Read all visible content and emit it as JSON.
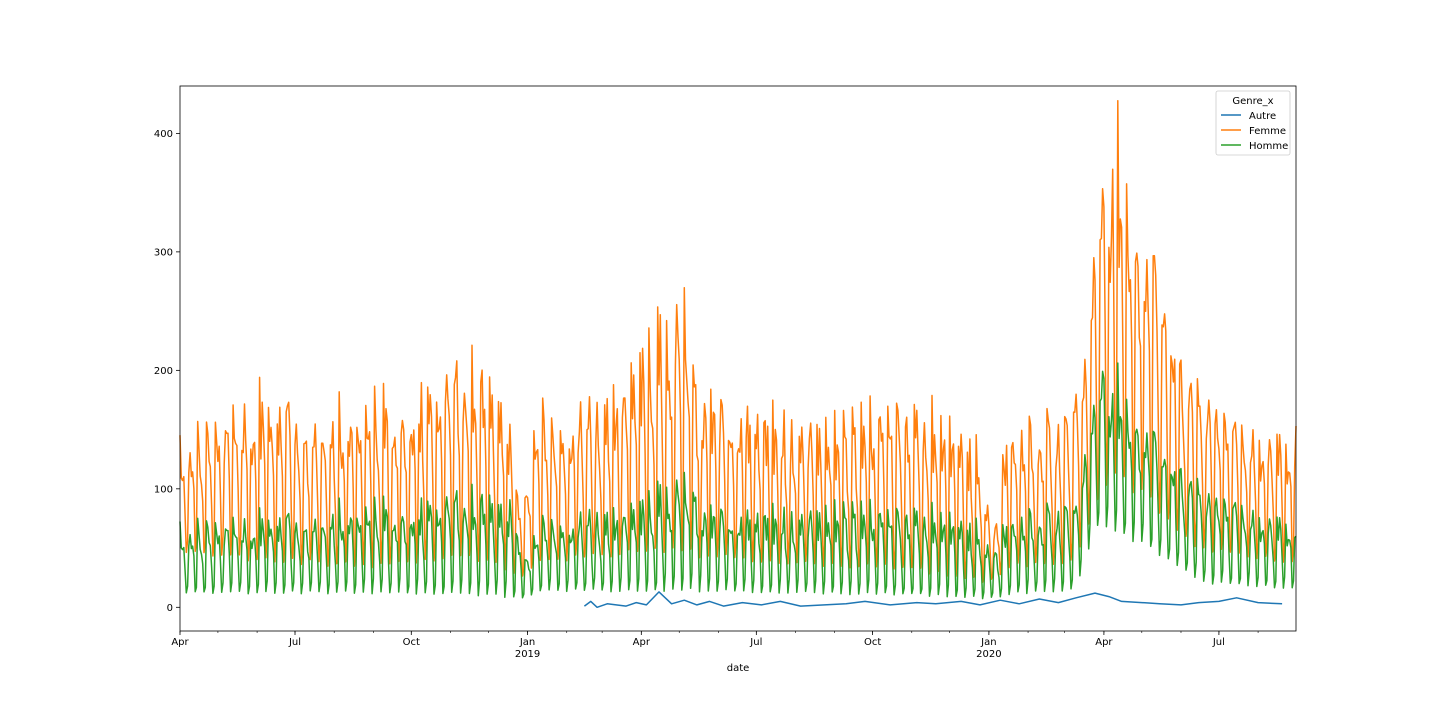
{
  "chart_data": {
    "type": "line",
    "xlabel": "date",
    "ylabel": "",
    "x_range": [
      "2018-04-01",
      "2020-08-31"
    ],
    "ylim": [
      -20,
      440
    ],
    "yticks": [
      0,
      100,
      200,
      300,
      400
    ],
    "xticks": [
      {
        "date": "2018-04-01",
        "label": "Apr",
        "year": ""
      },
      {
        "date": "2018-07-01",
        "label": "Jul",
        "year": ""
      },
      {
        "date": "2018-10-01",
        "label": "Oct",
        "year": ""
      },
      {
        "date": "2019-01-01",
        "label": "Jan",
        "year": "2019"
      },
      {
        "date": "2019-04-01",
        "label": "Apr",
        "year": ""
      },
      {
        "date": "2019-07-01",
        "label": "Jul",
        "year": ""
      },
      {
        "date": "2019-10-01",
        "label": "Oct",
        "year": ""
      },
      {
        "date": "2020-01-01",
        "label": "Jan",
        "year": "2020"
      },
      {
        "date": "2020-04-01",
        "label": "Apr",
        "year": ""
      },
      {
        "date": "2020-07-01",
        "label": "Jul",
        "year": ""
      }
    ],
    "grid": false,
    "legend": {
      "title": "Genre_x",
      "placement": "top-right"
    },
    "series": [
      {
        "name": "Autre",
        "color": "#1f77b4",
        "points": [
          [
            "2019-02-15",
            1
          ],
          [
            "2019-02-20",
            5
          ],
          [
            "2019-02-25",
            0
          ],
          [
            "2019-03-05",
            3
          ],
          [
            "2019-03-20",
            1
          ],
          [
            "2019-03-28",
            4
          ],
          [
            "2019-04-05",
            2
          ],
          [
            "2019-04-15",
            13
          ],
          [
            "2019-04-25",
            3
          ],
          [
            "2019-05-05",
            6
          ],
          [
            "2019-05-15",
            2
          ],
          [
            "2019-05-25",
            5
          ],
          [
            "2019-06-05",
            1
          ],
          [
            "2019-06-20",
            4
          ],
          [
            "2019-07-05",
            2
          ],
          [
            "2019-07-20",
            5
          ],
          [
            "2019-08-05",
            1
          ],
          [
            "2019-09-10",
            3
          ],
          [
            "2019-09-25",
            5
          ],
          [
            "2019-10-15",
            2
          ],
          [
            "2019-11-05",
            4
          ],
          [
            "2019-11-20",
            3
          ],
          [
            "2019-12-10",
            5
          ],
          [
            "2019-12-25",
            2
          ],
          [
            "2020-01-10",
            6
          ],
          [
            "2020-01-25",
            3
          ],
          [
            "2020-02-10",
            7
          ],
          [
            "2020-02-25",
            4
          ],
          [
            "2020-03-10",
            8
          ],
          [
            "2020-03-25",
            12
          ],
          [
            "2020-04-05",
            9
          ],
          [
            "2020-04-15",
            5
          ],
          [
            "2020-05-01",
            4
          ],
          [
            "2020-05-15",
            3
          ],
          [
            "2020-06-01",
            2
          ],
          [
            "2020-06-15",
            4
          ],
          [
            "2020-07-01",
            5
          ],
          [
            "2020-07-15",
            8
          ],
          [
            "2020-08-01",
            4
          ],
          [
            "2020-08-20",
            3
          ]
        ]
      },
      {
        "name": "Femme",
        "color": "#ff7f0e",
        "base_low": [
          [
            "2018-04-01",
            40
          ],
          [
            "2018-06-01",
            30
          ],
          [
            "2018-09-01",
            25
          ],
          [
            "2018-11-15",
            30
          ],
          [
            "2018-12-25",
            20
          ],
          [
            "2019-01-10",
            30
          ],
          [
            "2019-04-01",
            35
          ],
          [
            "2019-07-01",
            30
          ],
          [
            "2019-10-01",
            25
          ],
          [
            "2019-12-25",
            15
          ],
          [
            "2020-01-15",
            25
          ],
          [
            "2020-03-10",
            30
          ],
          [
            "2020-03-20",
            60
          ],
          [
            "2020-04-10",
            90
          ],
          [
            "2020-05-10",
            70
          ],
          [
            "2020-06-15",
            40
          ],
          [
            "2020-08-31",
            30
          ]
        ],
        "base_high": [
          [
            "2018-04-01",
            125
          ],
          [
            "2018-06-01",
            165
          ],
          [
            "2018-08-01",
            150
          ],
          [
            "2018-10-01",
            165
          ],
          [
            "2018-11-20",
            195
          ],
          [
            "2018-12-15",
            160
          ],
          [
            "2018-12-28",
            70
          ],
          [
            "2019-01-10",
            150
          ],
          [
            "2019-03-01",
            165
          ],
          [
            "2019-04-01",
            195
          ],
          [
            "2019-05-05",
            250
          ],
          [
            "2019-05-15",
            175
          ],
          [
            "2019-07-01",
            155
          ],
          [
            "2019-09-01",
            140
          ],
          [
            "2019-10-15",
            155
          ],
          [
            "2019-12-20",
            140
          ],
          [
            "2020-01-05",
            55
          ],
          [
            "2020-01-15",
            140
          ],
          [
            "2020-03-05",
            150
          ],
          [
            "2020-03-18",
            200
          ],
          [
            "2020-03-28",
            320
          ],
          [
            "2020-04-08",
            380
          ],
          [
            "2020-04-25",
            330
          ],
          [
            "2020-05-15",
            290
          ],
          [
            "2020-05-30",
            200
          ],
          [
            "2020-06-15",
            170
          ],
          [
            "2020-07-15",
            145
          ],
          [
            "2020-08-31",
            140
          ]
        ],
        "end_value": 153
      },
      {
        "name": "Homme",
        "color": "#2ca02c",
        "base_low": [
          [
            "2018-04-01",
            8
          ],
          [
            "2018-09-01",
            7
          ],
          [
            "2018-12-25",
            3
          ],
          [
            "2019-01-10",
            10
          ],
          [
            "2019-04-01",
            8
          ],
          [
            "2019-07-01",
            8
          ],
          [
            "2019-10-01",
            6
          ],
          [
            "2019-12-25",
            4
          ],
          [
            "2020-01-15",
            6
          ],
          [
            "2020-03-10",
            10
          ],
          [
            "2020-03-25",
            60
          ],
          [
            "2020-04-20",
            50
          ],
          [
            "2020-05-20",
            35
          ],
          [
            "2020-06-20",
            15
          ],
          [
            "2020-08-31",
            12
          ]
        ],
        "base_high": [
          [
            "2018-04-01",
            60
          ],
          [
            "2018-06-01",
            70
          ],
          [
            "2018-10-01",
            80
          ],
          [
            "2018-11-20",
            90
          ],
          [
            "2018-12-20",
            80
          ],
          [
            "2018-12-30",
            35
          ],
          [
            "2019-01-15",
            70
          ],
          [
            "2019-04-01",
            80
          ],
          [
            "2019-05-05",
            105
          ],
          [
            "2019-05-20",
            80
          ],
          [
            "2019-07-01",
            75
          ],
          [
            "2019-10-01",
            75
          ],
          [
            "2019-12-20",
            70
          ],
          [
            "2020-01-05",
            40
          ],
          [
            "2020-01-15",
            70
          ],
          [
            "2020-03-10",
            80
          ],
          [
            "2020-03-22",
            150
          ],
          [
            "2020-04-01",
            195
          ],
          [
            "2020-04-15",
            175
          ],
          [
            "2020-05-10",
            150
          ],
          [
            "2020-06-01",
            110
          ],
          [
            "2020-06-20",
            90
          ],
          [
            "2020-07-20",
            80
          ],
          [
            "2020-08-31",
            70
          ]
        ],
        "end_value": 60
      }
    ]
  }
}
